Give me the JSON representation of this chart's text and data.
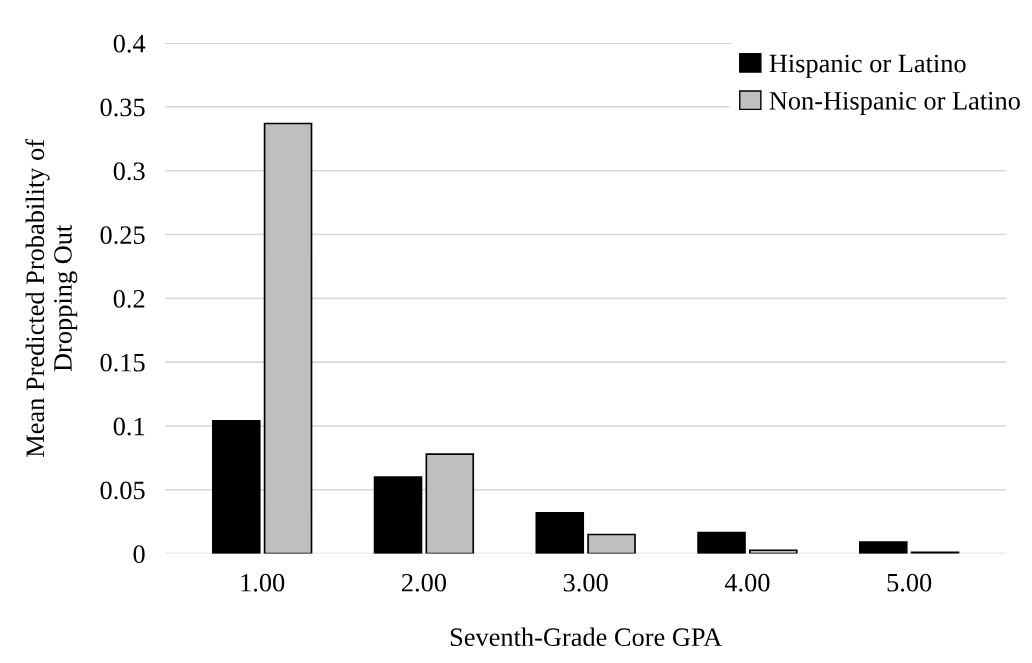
{
  "chart_data": {
    "type": "bar",
    "xlabel": "Seventh-Grade Core GPA",
    "ylabel": "Mean Predicted Probability of\nDropping Out",
    "categories": [
      "1.00",
      "2.00",
      "3.00",
      "4.00",
      "5.00"
    ],
    "series": [
      {
        "name": "Hispanic or Latino",
        "color": "#000000",
        "values": [
          0.104,
          0.06,
          0.032,
          0.0165,
          0.009
        ]
      },
      {
        "name": "Non-Hispanic or Latino",
        "color": "#bfbfbf",
        "values": [
          0.337,
          0.078,
          0.015,
          0.0026,
          0.001
        ]
      }
    ],
    "ylim": [
      0,
      0.4
    ],
    "yticks": [
      0,
      0.05,
      0.1,
      0.15,
      0.2,
      0.25,
      0.3,
      0.35,
      0.4
    ],
    "grid": "y",
    "legend": "top right"
  }
}
